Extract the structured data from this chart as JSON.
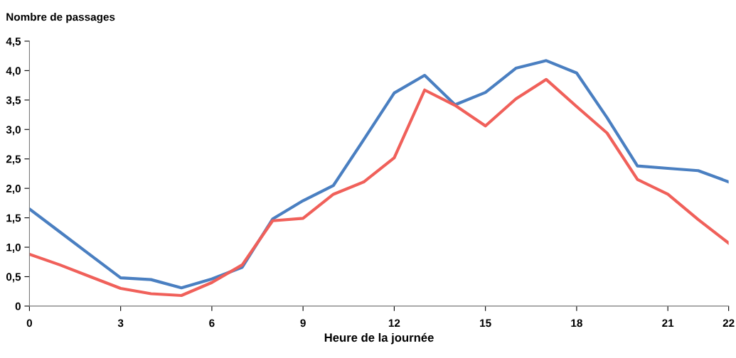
{
  "chart_data": {
    "type": "line",
    "ylabel": "Nombre de passages",
    "xlabel": "Heure de la journée",
    "categories": [
      "0",
      null,
      null,
      "3",
      null,
      null,
      "6",
      null,
      null,
      "9",
      null,
      null,
      "12",
      null,
      null,
      "15",
      null,
      null,
      "18",
      null,
      null,
      "21",
      null,
      "22"
    ],
    "series": [
      {
        "color": "#4a7fc1",
        "values": [
          1.65,
          1.26,
          0.87,
          0.48,
          0.45,
          0.31,
          0.46,
          0.66,
          1.48,
          1.79,
          2.05,
          2.83,
          3.62,
          3.92,
          3.42,
          3.63,
          4.04,
          4.17,
          3.96,
          3.2,
          2.38,
          2.34,
          2.3,
          2.11
        ]
      },
      {
        "color": "#f0605a",
        "values": [
          0.88,
          0.7,
          0.5,
          0.3,
          0.21,
          0.18,
          0.4,
          0.7,
          1.45,
          1.49,
          1.9,
          2.11,
          2.52,
          3.67,
          3.41,
          3.06,
          3.52,
          3.85,
          3.39,
          2.94,
          2.15,
          1.9,
          1.47,
          1.07
        ]
      }
    ],
    "ylim": [
      0,
      4.5
    ],
    "yticks": [
      0,
      {
        "value": 0.5,
        "label": "0,5"
      },
      {
        "value": 1,
        "label": "1,0"
      },
      {
        "value": 1.5,
        "label": "1,5"
      },
      {
        "value": 2,
        "label": "2,0"
      },
      {
        "value": 2.5,
        "label": "2,5"
      },
      {
        "value": 3,
        "label": "3,0"
      },
      {
        "value": 3.5,
        "label": "3,5"
      },
      {
        "value": 4,
        "label": "4,0"
      },
      {
        "value": 4.5,
        "label": "4,5"
      }
    ],
    "grid": false,
    "marker": "none",
    "line_style": "solid"
  }
}
